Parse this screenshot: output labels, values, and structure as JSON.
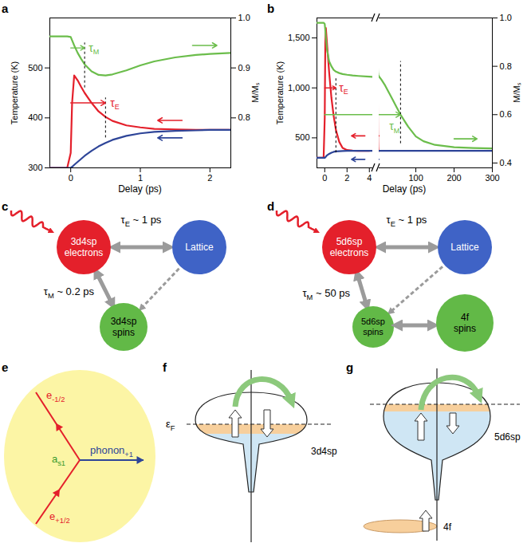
{
  "chart_data": [
    {
      "panel": "a",
      "type": "line",
      "xlabel": "Delay (ps)",
      "ylabel": "Temperature (K)",
      "y2label": "M/Mₛ",
      "xlim": [
        -0.3,
        2.3
      ],
      "xticks": [
        0,
        1,
        2
      ],
      "ylim": [
        300,
        600
      ],
      "yticks": [
        300,
        400,
        500
      ],
      "y2lim": [
        0.7,
        1.0
      ],
      "y2ticks": [
        0.8,
        0.9,
        {
          "value": 1.0,
          "label": "1.0"
        }
      ],
      "x": [
        -0.3,
        -0.05,
        0,
        0.02,
        0.05,
        0.1,
        0.15,
        0.2,
        0.3,
        0.4,
        0.5,
        0.6,
        0.8,
        1.0,
        1.2,
        1.5,
        1.8,
        2.0,
        2.3
      ],
      "series": [
        {
          "color": "#e4202b",
          "values": [
            300,
            300,
            330,
            430,
            485,
            475,
            462,
            450,
            430,
            413,
            402,
            394,
            385,
            381,
            378,
            377,
            376,
            376,
            376
          ]
        },
        {
          "color": "#2e4598",
          "values": [
            300,
            300,
            300,
            302,
            306,
            312,
            318,
            324,
            334,
            343,
            350,
            356,
            364,
            369,
            372,
            374,
            375,
            376,
            376
          ]
        },
        {
          "color": "#6bbd4b",
          "axis": "y2",
          "values": [
            0.963,
            0.963,
            0.962,
            0.955,
            0.945,
            0.93,
            0.918,
            0.907,
            0.893,
            0.886,
            0.885,
            0.887,
            0.895,
            0.905,
            0.913,
            0.921,
            0.926,
            0.928,
            0.93
          ]
        }
      ],
      "annotations": [
        {
          "text": "τ",
          "sub": "M",
          "color": "#6bbd4b",
          "axis": "y2",
          "from": 0,
          "to": 0.2,
          "at": 0.94,
          "mark_x": 0.2,
          "mark_span": [
            0.86,
            0.95
          ],
          "label_x": 0.31,
          "label_y": 0.94
        },
        {
          "text": "τ",
          "sub": "E",
          "color": "#e4202b",
          "from": 0,
          "to": 0.5,
          "at": 430,
          "mark_x": 0.5,
          "mark_span": [
            360,
            440
          ],
          "label_x": 0.62,
          "label_y": 430
        }
      ],
      "pointers": [
        {
          "color": "#e4202b",
          "x1": 1.6,
          "x2": 1.25,
          "y": 395
        },
        {
          "color": "#2e4598",
          "x1": 1.6,
          "x2": 1.25,
          "y": 360
        },
        {
          "color": "#6bbd4b",
          "axis": "y2",
          "x1": 1.75,
          "x2": 2.1,
          "y": 0.945
        }
      ]
    },
    {
      "panel": "b",
      "type": "line",
      "xlabel": "Delay (ps)",
      "ylabel": "Temperature (K)",
      "y2label": "M/Mₛ",
      "segments": [
        {
          "xlim": [
            -0.7,
            4.3
          ],
          "xticks": [
            0,
            2,
            4
          ]
        },
        {
          "xlim": [
            4,
            300
          ],
          "xticks": [
            100,
            200,
            300
          ]
        }
      ],
      "ylim": [
        200,
        1700
      ],
      "yticks": [
        500,
        {
          "value": 1000,
          "label": "1,000"
        },
        {
          "value": 1500,
          "label": "1,500"
        }
      ],
      "y2lim": [
        0.38,
        1.0
      ],
      "y2ticks": [
        0.4,
        0.6,
        0.8,
        {
          "value": 1.0,
          "label": "1.0"
        }
      ],
      "x": [
        -0.7,
        -0.1,
        0,
        0.05,
        0.1,
        0.2,
        0.4,
        0.6,
        0.8,
        1.0,
        1.3,
        1.6,
        2,
        2.5,
        3,
        4,
        5,
        10,
        20,
        30,
        40,
        50,
        60,
        70,
        80,
        100,
        120,
        150,
        200,
        250,
        300
      ],
      "series": [
        {
          "color": "#e4202b",
          "values": [
            300,
            300,
            700,
            1450,
            1600,
            1450,
            1150,
            900,
            720,
            580,
            460,
            400,
            378,
            372,
            370,
            370,
            null,
            null,
            null,
            null,
            null,
            null,
            null,
            null,
            null,
            null,
            null,
            null,
            null,
            null,
            null
          ]
        },
        {
          "color": "#2e4598",
          "values": [
            300,
            300,
            300,
            305,
            312,
            325,
            340,
            352,
            360,
            364,
            367,
            369,
            370,
            370,
            370,
            370,
            370,
            370,
            370,
            370,
            370,
            370,
            370,
            370,
            370,
            370,
            370,
            370,
            370,
            370,
            370
          ]
        },
        {
          "color": "#6bbd4b",
          "axis": "y2",
          "values": [
            0.98,
            0.98,
            0.975,
            0.95,
            0.92,
            0.87,
            0.82,
            0.8,
            0.785,
            0.778,
            0.772,
            0.768,
            0.765,
            0.762,
            0.76,
            0.757,
            0.755,
            0.745,
            0.72,
            0.69,
            0.66,
            0.63,
            0.6,
            0.575,
            0.55,
            0.51,
            0.49,
            0.475,
            0.465,
            0.462,
            0.46
          ]
        }
      ],
      "annotations": [
        {
          "text": "τ",
          "sub": "E",
          "color": "#e4202b",
          "from": 0,
          "to": 1.0,
          "at": 1000,
          "mark_x": 1.0,
          "mark_span": [
            350,
            1100
          ],
          "label_x": 1.6,
          "label_y": 1000
        },
        {
          "text": "τ",
          "sub": "M",
          "color": "#6bbd4b",
          "axis": "y2",
          "from": 0,
          "to": 60,
          "at": 0.6,
          "mark_x": 60,
          "mark_span": [
            0.48,
            0.82
          ],
          "label_x": 40,
          "label_y": 0.55
        }
      ],
      "pointers": [
        {
          "color": "#e4202b",
          "x1": 3.6,
          "x2": 2.4,
          "y": 520
        },
        {
          "color": "#2e4598",
          "x1": 3.6,
          "x2": 2.4,
          "y": 285
        },
        {
          "color": "#6bbd4b",
          "axis": "y2",
          "x1": 200,
          "x2": 260,
          "y": 0.5
        }
      ]
    }
  ],
  "diagrams": {
    "c": {
      "panel": "c",
      "electrons": "3d4sp electrons",
      "lattice": "Lattice",
      "spins": "3d4sp spins",
      "tau_E": {
        "base": "τ",
        "sub": "E",
        "rest": " ~ 1 ps"
      },
      "tau_M": {
        "base": "τ",
        "sub": "M",
        "rest": " ~ 0.2 ps"
      }
    },
    "d": {
      "panel": "d",
      "electrons": "5d6sp electrons",
      "lattice": "Lattice",
      "spins": "5d6sp spins",
      "f_spins": "4f spins",
      "tau_E": {
        "base": "τ",
        "sub": "E",
        "rest": " ~ 1 ps"
      },
      "tau_M": {
        "base": "τ",
        "sub": "M",
        "rest": " ~ 50 ps"
      }
    },
    "e": {
      "panel": "e",
      "outgoing": {
        "base": "e",
        "sub": "-1/2"
      },
      "incoming": {
        "base": "e",
        "sub": "+1/2"
      },
      "magnon": {
        "base": "a",
        "sub": "s1"
      },
      "phonon": {
        "base": "phonon",
        "sub": "+1"
      }
    },
    "f": {
      "panel": "f",
      "fermi": {
        "base": "ε",
        "sub": "F"
      },
      "band": "3d4sp"
    },
    "g": {
      "panel": "g",
      "band": "5d6sp",
      "core": "4f"
    }
  }
}
